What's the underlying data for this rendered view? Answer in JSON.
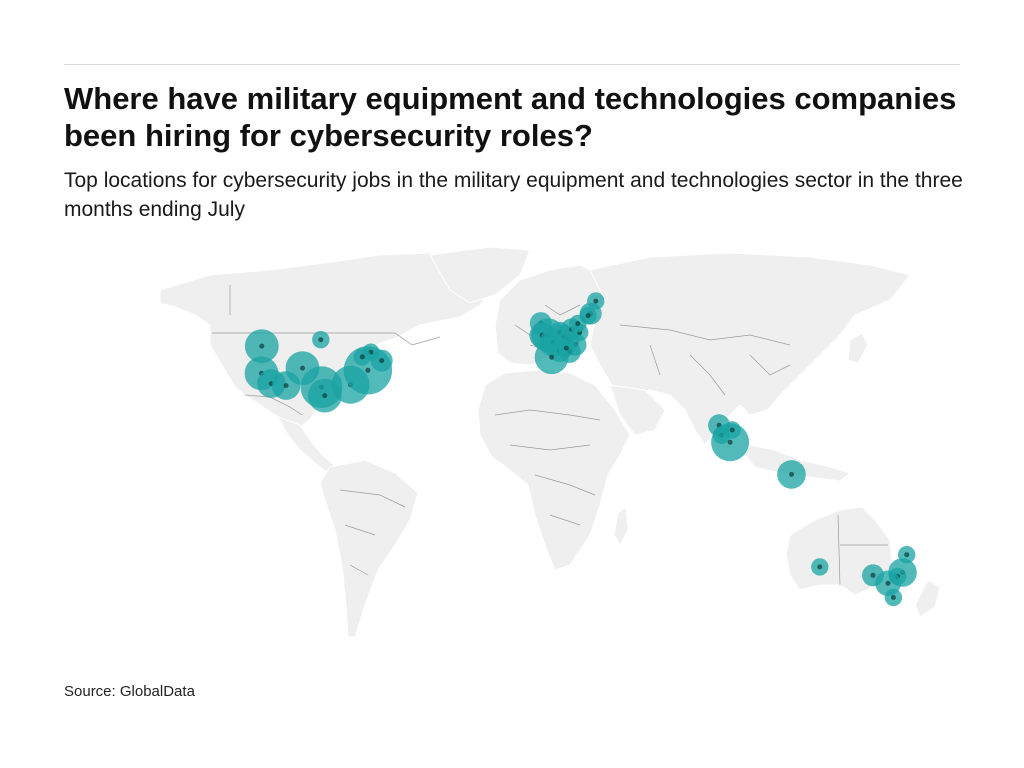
{
  "header": {
    "title": "Where have military equipment and technologies companies been hiring for cybersecurity roles?",
    "subtitle": "Top locations for cybersecurity jobs in the military equipment and technologies sector in the three months ending July"
  },
  "footer": {
    "source": "Source: GlobalData"
  },
  "colors": {
    "bubble": "#1aa3a3",
    "land": "#efefef",
    "border": "#9b9b9b"
  },
  "map_data": {
    "projection": "equirectangular",
    "lon_range": [
      -170,
      180
    ],
    "lat_range": [
      -60,
      84
    ],
    "bubbles": [
      {
        "lon": -122.3,
        "lat": 47.6,
        "size": 3
      },
      {
        "lon": -122.4,
        "lat": 37.8,
        "size": 3
      },
      {
        "lon": -118.2,
        "lat": 34.1,
        "size": 2
      },
      {
        "lon": -111.9,
        "lat": 33.4,
        "size": 2
      },
      {
        "lon": -104.9,
        "lat": 39.7,
        "size": 3
      },
      {
        "lon": -97.1,
        "lat": 49.9,
        "size": 0.5
      },
      {
        "lon": -96.8,
        "lat": 32.8,
        "size": 5
      },
      {
        "lon": -95.4,
        "lat": 29.8,
        "size": 3
      },
      {
        "lon": -84.4,
        "lat": 33.7,
        "size": 4
      },
      {
        "lon": -77.0,
        "lat": 38.9,
        "size": 7
      },
      {
        "lon": -75.7,
        "lat": 45.4,
        "size": 0.5
      },
      {
        "lon": -71.1,
        "lat": 42.4,
        "size": 1
      },
      {
        "lon": -79.4,
        "lat": 43.7,
        "size": 0.5
      },
      {
        "lon": -3.2,
        "lat": 55.9,
        "size": 1
      },
      {
        "lon": -0.1,
        "lat": 51.5,
        "size": 3
      },
      {
        "lon": -2.6,
        "lat": 51.5,
        "size": 1.5
      },
      {
        "lon": 2.3,
        "lat": 48.9,
        "size": 2
      },
      {
        "lon": 4.9,
        "lat": 52.4,
        "size": 1
      },
      {
        "lon": 6.8,
        "lat": 51.2,
        "size": 1
      },
      {
        "lon": 8.7,
        "lat": 50.1,
        "size": 1
      },
      {
        "lon": 11.6,
        "lat": 48.1,
        "size": 1
      },
      {
        "lon": 10.0,
        "lat": 53.6,
        "size": 1
      },
      {
        "lon": 13.4,
        "lat": 52.5,
        "size": 0.5
      },
      {
        "lon": 12.6,
        "lat": 55.7,
        "size": 0.5
      },
      {
        "lon": 18.1,
        "lat": 59.3,
        "size": 1
      },
      {
        "lon": 17.0,
        "lat": 58.6,
        "size": 0.5
      },
      {
        "lon": 20.3,
        "lat": 63.8,
        "size": 0.5
      },
      {
        "lon": 4.8,
        "lat": 45.8,
        "size": 1
      },
      {
        "lon": 1.4,
        "lat": 43.6,
        "size": 3
      },
      {
        "lon": 9.2,
        "lat": 45.5,
        "size": 1
      },
      {
        "lon": 7.7,
        "lat": 46.9,
        "size": 0.5
      },
      {
        "lon": 72.9,
        "lat": 19.1,
        "size": 1
      },
      {
        "lon": 73.9,
        "lat": 15.5,
        "size": 0.5
      },
      {
        "lon": 77.6,
        "lat": 13.0,
        "size": 4
      },
      {
        "lon": 78.5,
        "lat": 17.4,
        "size": 0.5
      },
      {
        "lon": 103.8,
        "lat": 1.4,
        "size": 2
      },
      {
        "lon": 151.2,
        "lat": -33.9,
        "size": 2
      },
      {
        "lon": 149.1,
        "lat": -35.3,
        "size": 0.5
      },
      {
        "lon": 145.0,
        "lat": -37.8,
        "size": 1.5
      },
      {
        "lon": 138.6,
        "lat": -34.9,
        "size": 1
      },
      {
        "lon": 147.3,
        "lat": -42.9,
        "size": 0.5
      },
      {
        "lon": 115.9,
        "lat": -31.9,
        "size": 0.5
      },
      {
        "lon": 153.0,
        "lat": -27.5,
        "size": 0.5
      }
    ]
  }
}
